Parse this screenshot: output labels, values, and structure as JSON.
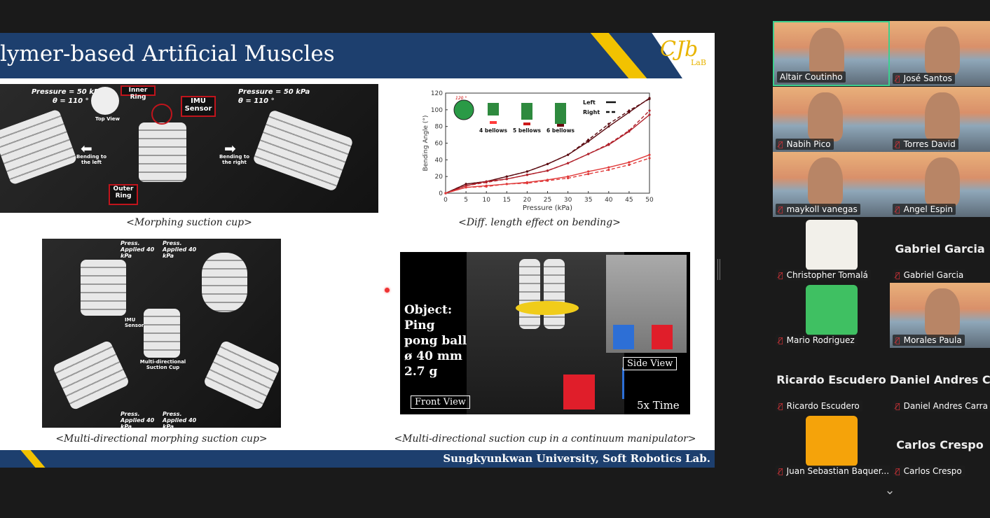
{
  "slide": {
    "title": "lymer-based Artificial Muscles",
    "logo": "CJb",
    "logo_sub": "LaB",
    "footer": "Sungkyunkwan University, Soft Robotics Lab.",
    "panel1": {
      "caption": "<Morphing suction cup>",
      "pressure_left": "Pressure = 50 kPa",
      "theta_left": "θ = 110 °",
      "pressure_right": "Pressure = 50 kPa",
      "theta_right": "θ = 110 °",
      "inner_ring": "Inner Ring",
      "top_view": "Top View",
      "imu": "IMU Sensor",
      "outer_ring": "Outer Ring",
      "bend_left": "Bending to the left",
      "bend_right": "Bending to the right"
    },
    "panel2": {
      "caption": "<Diff. length effect on bending>"
    },
    "panel3": {
      "caption": "<Multi-directional morphing suction cup>",
      "press_top_1": "Press. Applied 40 kPa",
      "press_top_2": "Press. Applied 40 kPa",
      "press_bot_1": "Press. Applied 40 kPa",
      "press_bot_2": "Press. Applied 40 kPa",
      "imu": "IMU Sensor",
      "center": "Multi-directional Suction Cup"
    },
    "panel4": {
      "caption": "<Multi-directional suction cup in a continuum manipulator>",
      "object": "Object:",
      "obj_name": "Ping pong ball",
      "diameter": "ø 40 mm",
      "mass": "2.7 g",
      "front_view": "Front View",
      "side_view": "Side View",
      "speed": "5x Time"
    }
  },
  "chart_data": {
    "type": "line",
    "xlabel": "Pressure (kPa)",
    "ylabel": "Bending Angle (°)",
    "xlim": [
      0,
      50
    ],
    "ylim": [
      0,
      120
    ],
    "xticks": [
      0,
      5,
      10,
      15,
      20,
      25,
      30,
      35,
      40,
      45,
      50
    ],
    "yticks": [
      0,
      20,
      40,
      60,
      80,
      100,
      120
    ],
    "legend": {
      "left": "Left",
      "right": "Right",
      "placement": "top-right"
    },
    "inset_labels": [
      "4 bellows",
      "5 bellows",
      "6 bellows"
    ],
    "inset_angle": "120 °",
    "x": [
      0,
      5,
      10,
      15,
      20,
      25,
      30,
      35,
      40,
      45,
      50
    ],
    "series": [
      {
        "group": "6 bellows",
        "side": "Left",
        "color": "#5a0a10",
        "values": [
          0,
          11,
          14,
          20,
          26,
          35,
          46,
          62,
          80,
          97,
          114
        ]
      },
      {
        "group": "6 bellows",
        "side": "Right",
        "color": "#5a0a10",
        "values": [
          0,
          11,
          14,
          20,
          26,
          35,
          46,
          64,
          83,
          99,
          113
        ]
      },
      {
        "group": "5 bellows",
        "side": "Left",
        "color": "#b0202a",
        "values": [
          0,
          9,
          14,
          17,
          22,
          27,
          36,
          47,
          58,
          74,
          94
        ]
      },
      {
        "group": "5 bellows",
        "side": "Right",
        "color": "#b0202a",
        "values": [
          0,
          9,
          13,
          17,
          22,
          27,
          36,
          47,
          59,
          75,
          99
        ]
      },
      {
        "group": "4 bellows",
        "side": "Left",
        "color": "#e03a3a",
        "values": [
          0,
          7,
          9,
          11,
          13,
          16,
          20,
          26,
          31,
          37,
          46
        ]
      },
      {
        "group": "4 bellows",
        "side": "Right",
        "color": "#e03a3a",
        "values": [
          0,
          7,
          8,
          11,
          12,
          15,
          18,
          23,
          28,
          34,
          42
        ]
      }
    ]
  },
  "gallery": {
    "active_color": "#3ccf8e",
    "tiles": [
      {
        "name": "Altair Coutinho",
        "type": "video",
        "muted": false
      },
      {
        "name": "José Santos",
        "type": "video",
        "muted": true
      },
      {
        "name": "Nabih Pico",
        "type": "video",
        "muted": true
      },
      {
        "name": "Torres David",
        "type": "video",
        "muted": true
      },
      {
        "name": "maykoll vanegas",
        "type": "video",
        "muted": true
      },
      {
        "name": "Angel Espin",
        "type": "video",
        "muted": true
      },
      {
        "name": "Christopher Tomalá",
        "type": "avatar",
        "muted": true
      },
      {
        "name": "Gabriel Garcia",
        "type": "name",
        "display": "Gabriel Garcia",
        "muted": true
      },
      {
        "name": "Mario Rodriguez",
        "type": "avatar",
        "muted": true
      },
      {
        "name": "Morales Paula",
        "type": "video",
        "muted": true
      },
      {
        "name": "Ricardo Escudero",
        "type": "name",
        "display": "Ricardo Escudero",
        "muted": true
      },
      {
        "name": "Daniel Andres Carra",
        "type": "name",
        "display": "Daniel Andres C",
        "muted": true
      },
      {
        "name": "Juan Sebastian Baquer...",
        "type": "avatar",
        "muted": true
      },
      {
        "name": "Carlos Crespo",
        "type": "name",
        "display": "Carlos Crespo",
        "muted": true
      }
    ],
    "muted_icon": "mic-muted-icon",
    "scroll_icon": "chevron-down-icon"
  }
}
